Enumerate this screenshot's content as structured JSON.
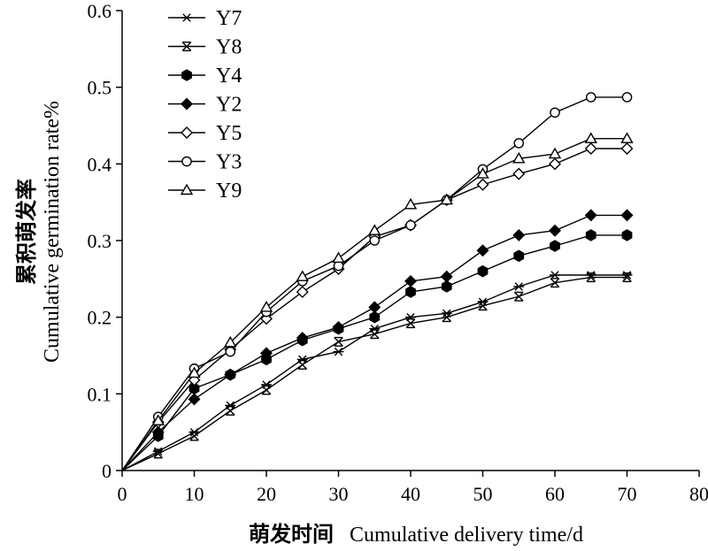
{
  "chart_data": {
    "type": "line",
    "xlabel_cn": "萌发时间",
    "xlabel_en": "Cumulative delivery time/d",
    "ylabel_cn": "累积萌发率",
    "ylabel_en": "Cumulative germination rate%",
    "xlim": [
      0,
      80
    ],
    "ylim": [
      0,
      0.6
    ],
    "xticks": [
      "0",
      "10",
      "20",
      "30",
      "40",
      "50",
      "60",
      "70",
      "80"
    ],
    "yticks": [
      "0",
      "0.1",
      "0.2",
      "0.3",
      "0.4",
      "0.5",
      "0.6"
    ],
    "grid": false,
    "legend_position": "top-left",
    "x": [
      0,
      5,
      10,
      15,
      20,
      25,
      30,
      35,
      40,
      45,
      50,
      55,
      60,
      65,
      70
    ],
    "series": [
      {
        "name": "Y7",
        "marker": "asterisk",
        "values": [
          0,
          0.025,
          0.05,
          0.085,
          0.112,
          0.145,
          0.155,
          0.185,
          0.2,
          0.205,
          0.22,
          0.24,
          0.255,
          0.255,
          0.255
        ]
      },
      {
        "name": "Y8",
        "marker": "x-cross",
        "values": [
          0,
          0.022,
          0.045,
          0.078,
          0.105,
          0.138,
          0.168,
          0.178,
          0.192,
          0.2,
          0.215,
          0.227,
          0.245,
          0.252,
          0.252
        ]
      },
      {
        "name": "Y4",
        "marker": "filled-hexagon",
        "values": [
          0,
          0.045,
          0.107,
          0.125,
          0.145,
          0.17,
          0.185,
          0.2,
          0.233,
          0.24,
          0.26,
          0.28,
          0.293,
          0.307,
          0.307
        ]
      },
      {
        "name": "Y2",
        "marker": "filled-diamond",
        "values": [
          0,
          0.05,
          0.093,
          0.125,
          0.153,
          0.173,
          0.187,
          0.213,
          0.247,
          0.253,
          0.287,
          0.307,
          0.313,
          0.333,
          0.333
        ]
      },
      {
        "name": "Y5",
        "marker": "open-diamond",
        "values": [
          0,
          0.063,
          0.118,
          0.158,
          0.198,
          0.233,
          0.263,
          0.305,
          0.32,
          0.353,
          0.373,
          0.387,
          0.4,
          0.42,
          0.42
        ]
      },
      {
        "name": "Y3",
        "marker": "open-circle",
        "values": [
          0,
          0.07,
          0.133,
          0.155,
          0.207,
          0.247,
          0.267,
          0.3,
          0.32,
          0.353,
          0.393,
          0.427,
          0.467,
          0.487,
          0.487
        ]
      },
      {
        "name": "Y9",
        "marker": "open-triangle",
        "values": [
          0,
          0.065,
          0.127,
          0.167,
          0.213,
          0.253,
          0.277,
          0.313,
          0.347,
          0.353,
          0.387,
          0.407,
          0.413,
          0.433,
          0.433
        ]
      }
    ]
  }
}
